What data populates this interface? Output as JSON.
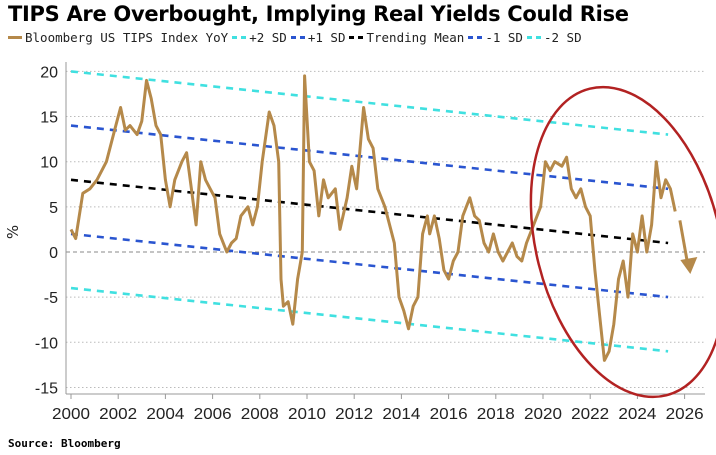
{
  "chart_data": {
    "type": "line",
    "title": "TIPS Are Overbought, Implying Real Yields Could Rise",
    "ylabel": "%",
    "xlabel": "",
    "ylim": [
      -15,
      20
    ],
    "xlim": [
      2000,
      2027
    ],
    "yticks": [
      "20",
      "15",
      "10",
      "5",
      "0",
      "-5",
      "-10",
      "-15"
    ],
    "xticks": [
      "2000",
      "2002",
      "2004",
      "2006",
      "2008",
      "2010",
      "2012",
      "2014",
      "2016",
      "2018",
      "2020",
      "2022",
      "2024",
      "2026"
    ],
    "grid": true,
    "legend_placement": "top",
    "source": "Source: Bloomberg",
    "series": [
      {
        "name": "Bloomberg US TIPS Index YoY",
        "color": "#b5894a",
        "style": "solid",
        "x": [
          2000.0,
          2000.2,
          2000.5,
          2000.8,
          2001.1,
          2001.5,
          2001.9,
          2002.1,
          2002.3,
          2002.5,
          2002.8,
          2003.0,
          2003.2,
          2003.4,
          2003.6,
          2003.8,
          2004.0,
          2004.2,
          2004.4,
          2004.7,
          2004.9,
          2005.1,
          2005.3,
          2005.5,
          2005.7,
          2005.9,
          2006.1,
          2006.3,
          2006.6,
          2006.8,
          2007.0,
          2007.2,
          2007.5,
          2007.7,
          2007.9,
          2008.1,
          2008.4,
          2008.6,
          2008.8,
          2008.9,
          2009.0,
          2009.2,
          2009.4,
          2009.6,
          2009.8,
          2009.9,
          2010.1,
          2010.3,
          2010.5,
          2010.7,
          2010.9,
          2011.2,
          2011.4,
          2011.7,
          2011.9,
          2012.1,
          2012.4,
          2012.6,
          2012.8,
          2013.0,
          2013.3,
          2013.5,
          2013.7,
          2013.9,
          2014.1,
          2014.3,
          2014.5,
          2014.7,
          2014.9,
          2015.1,
          2015.2,
          2015.4,
          2015.6,
          2015.8,
          2016.0,
          2016.2,
          2016.4,
          2016.6,
          2016.9,
          2017.1,
          2017.3,
          2017.5,
          2017.7,
          2017.9,
          2018.1,
          2018.3,
          2018.5,
          2018.7,
          2018.9,
          2019.1,
          2019.3,
          2019.6,
          2019.9,
          2020.1,
          2020.3,
          2020.5,
          2020.8,
          2021.0,
          2021.2,
          2021.4,
          2021.6,
          2021.8,
          2022.0,
          2022.2,
          2022.4,
          2022.6,
          2022.8,
          2023.0,
          2023.2,
          2023.4,
          2023.6,
          2023.8,
          2024.0,
          2024.2,
          2024.4,
          2024.6,
          2024.8,
          2025.0,
          2025.2,
          2025.4,
          2025.6
        ],
        "y": [
          2.5,
          1.5,
          6.5,
          7,
          8,
          10,
          14,
          16,
          13.5,
          14,
          13,
          14.5,
          19,
          17,
          14,
          13,
          8,
          5,
          8,
          10,
          11,
          7,
          3,
          10,
          8,
          7,
          6,
          2,
          0,
          1,
          1.5,
          4,
          5,
          3,
          5,
          10,
          15.5,
          14,
          10,
          -3,
          -6,
          -5.5,
          -8,
          -3,
          0,
          19.5,
          10,
          9,
          4,
          8,
          6,
          7,
          2.5,
          6,
          9.5,
          7,
          16,
          12.5,
          11.5,
          7,
          5,
          3,
          1,
          -5,
          -6.5,
          -8.5,
          -6,
          -5,
          2,
          4,
          2,
          4,
          1.5,
          -2,
          -3,
          -1,
          0,
          4,
          6,
          4,
          3.5,
          1,
          0,
          2,
          0,
          -1,
          0,
          1,
          -0.5,
          -1,
          1,
          3,
          5,
          10,
          9,
          10,
          9.5,
          10.5,
          7,
          6,
          7,
          5,
          4,
          -2,
          -7,
          -12,
          -11,
          -8,
          -3,
          -1,
          -5,
          2,
          0,
          4,
          0,
          3,
          10,
          6,
          8,
          7,
          4.5
        ]
      },
      {
        "name": "+2 SD",
        "color": "#40e0e0",
        "style": "dashed",
        "x": [
          2000,
          2025.3
        ],
        "y": [
          20,
          13
        ]
      },
      {
        "name": "+1 SD",
        "color": "#2a55d0",
        "style": "dashed",
        "x": [
          2000,
          2025.3
        ],
        "y": [
          14,
          7
        ]
      },
      {
        "name": "Trending Mean",
        "color": "#000000",
        "style": "dashed",
        "x": [
          2000,
          2025.3
        ],
        "y": [
          8,
          1
        ]
      },
      {
        "name": "-1 SD",
        "color": "#2a55d0",
        "style": "dashed",
        "x": [
          2000,
          2025.3
        ],
        "y": [
          2,
          -5
        ]
      },
      {
        "name": "-2 SD",
        "color": "#40e0e0",
        "style": "dashed",
        "x": [
          2000,
          2025.3
        ],
        "y": [
          -4,
          -11
        ]
      }
    ],
    "annotations": [
      {
        "type": "ellipse",
        "color": "#b22222",
        "around": "2020-2026"
      },
      {
        "type": "arrow",
        "color": "#b5894a",
        "direction": "down",
        "from": [
          2025.8,
          3.5
        ],
        "to": [
          2026.2,
          -2
        ]
      }
    ]
  }
}
